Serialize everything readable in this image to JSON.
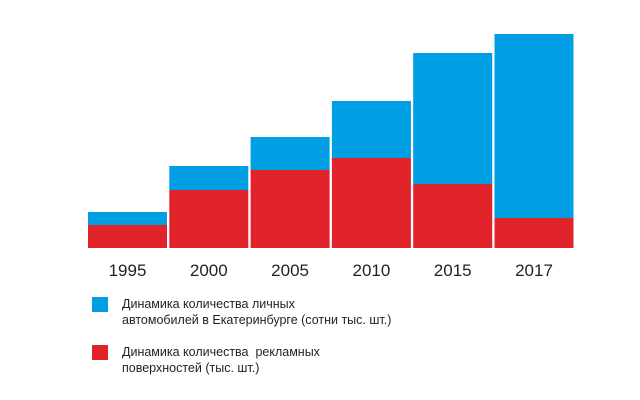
{
  "chart_data": {
    "type": "bar",
    "stacked": true,
    "categories": [
      "1995",
      "2000",
      "2005",
      "2010",
      "2015",
      "2017"
    ],
    "series": [
      {
        "name": "Динамика количества  рекламных\nповерхностей (тыс. шт.)",
        "color": "#e1232a",
        "values": [
          23,
          58,
          78,
          90,
          64,
          30
        ]
      },
      {
        "name": "Динамика количества личных\nавтомобилей в Екатеринбурге (сотни тыс. шт.)",
        "color": "#009fe3",
        "values": [
          13,
          24,
          33,
          57,
          131,
          184
        ]
      }
    ],
    "ylim": [
      0,
      214
    ],
    "grid": false,
    "legend": "bottom-left",
    "xlabel": "",
    "ylabel": "",
    "title": ""
  },
  "legend_order": [
    1,
    0
  ]
}
